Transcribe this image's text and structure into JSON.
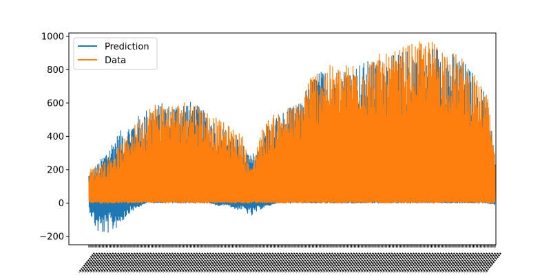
{
  "chart_data": {
    "type": "line",
    "title": "",
    "xlabel": "",
    "ylabel": "",
    "ylim": [
      -250,
      1020
    ],
    "yticks": [
      -200,
      0,
      200,
      400,
      600,
      800,
      1000
    ],
    "x_tick_labels": "dense, unreadable (overlapping rotated date labels)",
    "grid": false,
    "legend_position": "top-left",
    "series": [
      {
        "name": "Prediction",
        "color": "#1f77b4",
        "envelope_x": [
          0,
          0.02,
          0.04,
          0.06,
          0.08,
          0.1,
          0.12,
          0.14,
          0.16,
          0.18,
          0.2,
          0.22,
          0.24,
          0.26,
          0.28,
          0.3,
          0.32,
          0.34,
          0.36,
          0.38,
          0.4,
          0.42,
          0.44,
          0.46,
          0.48,
          0.5,
          0.52,
          0.54,
          0.56,
          0.58,
          0.6,
          0.62,
          0.64,
          0.66,
          0.68,
          0.7,
          0.72,
          0.74,
          0.76,
          0.78,
          0.8,
          0.82,
          0.84,
          0.86,
          0.88,
          0.9,
          0.92,
          0.94,
          0.96,
          0.98,
          1
        ],
        "envelope_high": [
          180,
          230,
          300,
          380,
          440,
          470,
          520,
          560,
          590,
          600,
          590,
          600,
          620,
          600,
          560,
          520,
          470,
          440,
          400,
          350,
          280,
          360,
          480,
          520,
          550,
          580,
          600,
          720,
          780,
          800,
          810,
          800,
          820,
          840,
          850,
          860,
          870,
          880,
          900,
          920,
          930,
          940,
          950,
          940,
          920,
          900,
          860,
          800,
          720,
          650,
          260
        ],
        "envelope_low": [
          -40,
          -180,
          -190,
          -170,
          -120,
          -60,
          -30,
          0,
          0,
          0,
          0,
          0,
          0,
          0,
          0,
          0,
          -20,
          -10,
          -40,
          -40,
          -85,
          -40,
          -20,
          0,
          0,
          0,
          0,
          0,
          0,
          0,
          0,
          0,
          0,
          0,
          0,
          0,
          0,
          0,
          0,
          0,
          0,
          0,
          0,
          0,
          0,
          0,
          0,
          0,
          0,
          0,
          -10
        ]
      },
      {
        "name": "Data",
        "color": "#ff7f0e",
        "envelope_x": [
          0,
          0.02,
          0.04,
          0.06,
          0.08,
          0.1,
          0.12,
          0.14,
          0.16,
          0.18,
          0.2,
          0.22,
          0.24,
          0.26,
          0.28,
          0.3,
          0.32,
          0.34,
          0.36,
          0.38,
          0.4,
          0.42,
          0.44,
          0.46,
          0.48,
          0.5,
          0.52,
          0.54,
          0.56,
          0.58,
          0.6,
          0.62,
          0.64,
          0.66,
          0.68,
          0.7,
          0.72,
          0.74,
          0.76,
          0.78,
          0.8,
          0.82,
          0.84,
          0.86,
          0.88,
          0.9,
          0.92,
          0.94,
          0.96,
          0.98,
          1
        ],
        "envelope_high": [
          200,
          230,
          260,
          300,
          360,
          420,
          500,
          560,
          600,
          610,
          590,
          600,
          620,
          610,
          580,
          540,
          500,
          470,
          440,
          400,
          200,
          420,
          500,
          540,
          560,
          590,
          600,
          760,
          800,
          820,
          830,
          820,
          840,
          860,
          860,
          880,
          900,
          890,
          920,
          950,
          960,
          970,
          980,
          960,
          930,
          900,
          870,
          800,
          720,
          660,
          270
        ],
        "envelope_low": [
          0,
          0,
          0,
          0,
          0,
          0,
          0,
          0,
          0,
          0,
          0,
          0,
          0,
          0,
          0,
          0,
          0,
          0,
          0,
          0,
          0,
          0,
          0,
          0,
          0,
          0,
          0,
          0,
          0,
          0,
          0,
          0,
          0,
          0,
          0,
          0,
          0,
          0,
          0,
          0,
          0,
          0,
          0,
          0,
          0,
          0,
          0,
          0,
          0,
          0,
          0
        ]
      }
    ]
  },
  "legend": {
    "items": [
      {
        "label": "Prediction",
        "color": "#1f77b4"
      },
      {
        "label": "Data",
        "color": "#ff7f0e"
      }
    ]
  },
  "axis": {
    "y_tick_labels": [
      "−200",
      "0",
      "200",
      "400",
      "600",
      "800",
      "1000"
    ]
  }
}
